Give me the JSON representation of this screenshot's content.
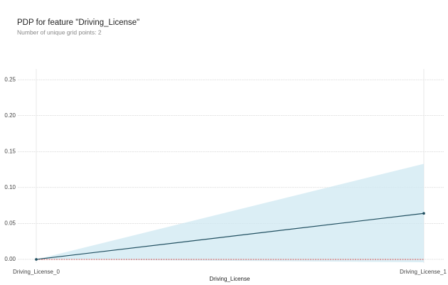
{
  "chart_data": {
    "type": "line",
    "title": "PDP for feature \"Driving_License\"",
    "subtitle": "Number of unique grid points: 2",
    "x_label": "Driving_License",
    "categories": [
      "Driving_License_0",
      "Driving_License_1"
    ],
    "values": [
      0,
      0.064
    ],
    "upper": [
      0,
      0.133
    ],
    "lower": [
      0,
      -0.004
    ],
    "color": "#1f4e5f",
    "band_color": "#cfe8f1",
    "reference_line": 0,
    "reference_color": "#d9534f",
    "ylim": [
      -0.005,
      0.265
    ],
    "yticks": [
      {
        "value": 0,
        "label": "0.00"
      },
      {
        "value": 0.05,
        "label": "0.05"
      },
      {
        "value": 0.1,
        "label": "0.10"
      },
      {
        "value": 0.15,
        "label": "0.15"
      },
      {
        "value": 0.2,
        "label": "0.20"
      },
      {
        "value": 0.25,
        "label": "0.25"
      }
    ],
    "grid": true
  }
}
